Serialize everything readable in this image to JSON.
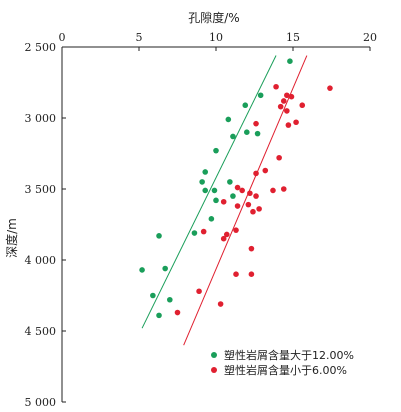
{
  "chart_data": {
    "type": "scatter",
    "xlabel": "孔隙度/%",
    "ylabel": "深度/m",
    "xlim": [
      0,
      20
    ],
    "ylim": [
      2500,
      5000
    ],
    "y_inverted": true,
    "x_axis_position": "top",
    "x_ticks": [
      0,
      5,
      10,
      15,
      20
    ],
    "y_ticks": [
      2500,
      3000,
      3500,
      4000,
      4500,
      5000
    ],
    "x_tick_labels": [
      "0",
      "5",
      "10",
      "15",
      "20"
    ],
    "y_tick_labels": [
      "2 500",
      "3 000",
      "3 500",
      "4 000",
      "4 500",
      "5 000"
    ],
    "grid": false,
    "legend_position": "bottom-right",
    "series": [
      {
        "name": "塑性岩屑含量大于12.00%",
        "color": "#1a9e5a",
        "points": [
          {
            "x": 14.8,
            "y": 2600
          },
          {
            "x": 12.9,
            "y": 2840
          },
          {
            "x": 11.9,
            "y": 2910
          },
          {
            "x": 10.8,
            "y": 3010
          },
          {
            "x": 12.0,
            "y": 3100
          },
          {
            "x": 11.1,
            "y": 3130
          },
          {
            "x": 12.7,
            "y": 3110
          },
          {
            "x": 10.0,
            "y": 3230
          },
          {
            "x": 9.3,
            "y": 3380
          },
          {
            "x": 9.1,
            "y": 3450
          },
          {
            "x": 9.3,
            "y": 3510
          },
          {
            "x": 9.9,
            "y": 3510
          },
          {
            "x": 10.9,
            "y": 3450
          },
          {
            "x": 10.0,
            "y": 3580
          },
          {
            "x": 11.1,
            "y": 3550
          },
          {
            "x": 9.7,
            "y": 3710
          },
          {
            "x": 8.6,
            "y": 3810
          },
          {
            "x": 6.3,
            "y": 3830
          },
          {
            "x": 5.2,
            "y": 4070
          },
          {
            "x": 6.7,
            "y": 4060
          },
          {
            "x": 5.9,
            "y": 4250
          },
          {
            "x": 7.0,
            "y": 4280
          },
          {
            "x": 6.3,
            "y": 4390
          }
        ],
        "trend": {
          "x": [
            5.2,
            13.9
          ],
          "y": [
            4480,
            2560
          ]
        }
      },
      {
        "name": "塑性岩屑含量小于6.00%",
        "color": "#e02030",
        "points": [
          {
            "x": 17.4,
            "y": 2790
          },
          {
            "x": 13.9,
            "y": 2780
          },
          {
            "x": 14.6,
            "y": 2840
          },
          {
            "x": 14.9,
            "y": 2850
          },
          {
            "x": 14.4,
            "y": 2880
          },
          {
            "x": 15.6,
            "y": 2910
          },
          {
            "x": 14.2,
            "y": 2920
          },
          {
            "x": 14.6,
            "y": 2950
          },
          {
            "x": 15.2,
            "y": 3030
          },
          {
            "x": 14.7,
            "y": 3050
          },
          {
            "x": 12.6,
            "y": 3040
          },
          {
            "x": 14.1,
            "y": 3280
          },
          {
            "x": 13.2,
            "y": 3370
          },
          {
            "x": 12.6,
            "y": 3390
          },
          {
            "x": 11.4,
            "y": 3490
          },
          {
            "x": 11.7,
            "y": 3510
          },
          {
            "x": 12.2,
            "y": 3530
          },
          {
            "x": 12.6,
            "y": 3550
          },
          {
            "x": 13.7,
            "y": 3510
          },
          {
            "x": 14.4,
            "y": 3500
          },
          {
            "x": 10.5,
            "y": 3590
          },
          {
            "x": 11.4,
            "y": 3620
          },
          {
            "x": 12.1,
            "y": 3610
          },
          {
            "x": 12.8,
            "y": 3640
          },
          {
            "x": 12.4,
            "y": 3660
          },
          {
            "x": 10.5,
            "y": 3850
          },
          {
            "x": 11.3,
            "y": 3790
          },
          {
            "x": 9.2,
            "y": 3800
          },
          {
            "x": 10.7,
            "y": 3820
          },
          {
            "x": 12.3,
            "y": 3920
          },
          {
            "x": 11.3,
            "y": 4100
          },
          {
            "x": 12.3,
            "y": 4100
          },
          {
            "x": 8.9,
            "y": 4220
          },
          {
            "x": 10.3,
            "y": 4310
          },
          {
            "x": 7.5,
            "y": 4370
          }
        ],
        "trend": {
          "x": [
            7.9,
            15.9
          ],
          "y": [
            4600,
            2560
          ]
        }
      }
    ]
  }
}
